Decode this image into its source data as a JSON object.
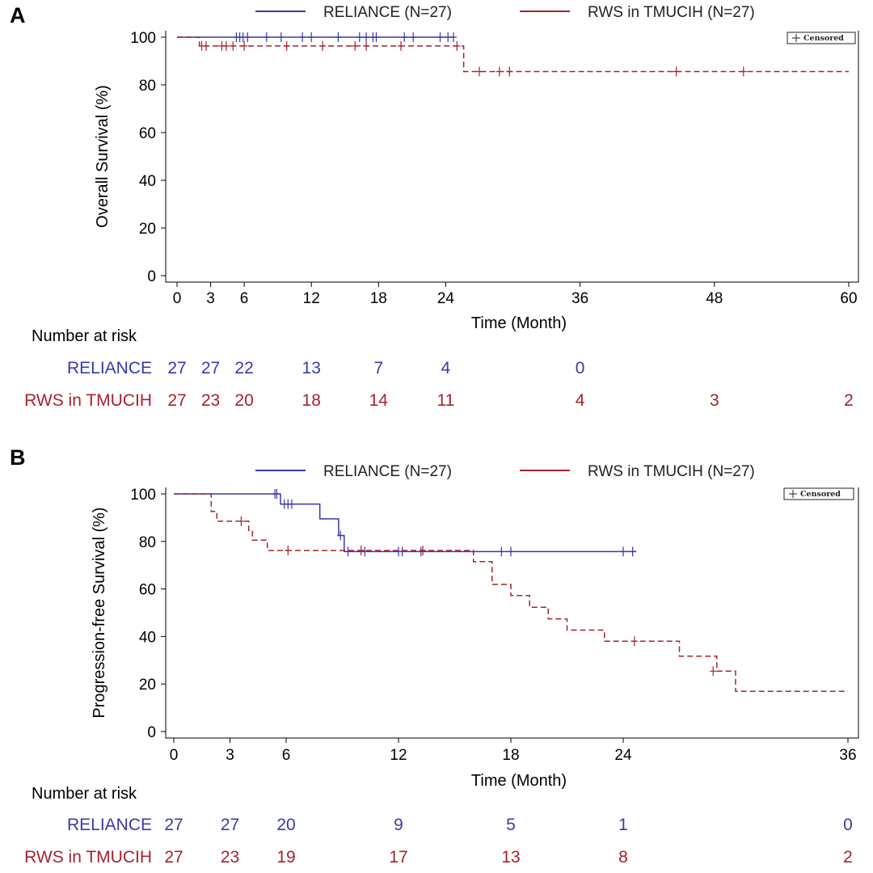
{
  "colors": {
    "reliance": "#3a3aa8",
    "rws": "#a8222c",
    "axis": "#000000"
  },
  "chart_data": [
    {
      "panel_label": "A",
      "type": "line",
      "subtype": "kaplan-meier",
      "ylabel": "Overall Survival (%)",
      "xlabel": "Time (Month)",
      "xlim": [
        0,
        60
      ],
      "ylim": [
        0,
        100
      ],
      "xticks": [
        0,
        3,
        6,
        12,
        18,
        24,
        36,
        48,
        60
      ],
      "xtick_labels": [
        "0",
        "3",
        "6",
        "12",
        "18",
        "24",
        "36",
        "48",
        "60"
      ],
      "yticks": [
        0,
        20,
        40,
        60,
        80,
        100
      ],
      "ytick_labels": [
        "0",
        "20",
        "40",
        "60",
        "80",
        "100"
      ],
      "censored_legend": "Censored",
      "series": [
        {
          "key": "reliance",
          "name": "RELIANCE (N=27)",
          "style": "solid",
          "steps": [
            [
              0,
              100
            ],
            [
              24.7,
              100
            ]
          ],
          "censored": [
            [
              5.3,
              100
            ],
            [
              5.6,
              100
            ],
            [
              5.9,
              100
            ],
            [
              6.3,
              100
            ],
            [
              8,
              100
            ],
            [
              9.3,
              100
            ],
            [
              11.2,
              100
            ],
            [
              12,
              100
            ],
            [
              14.4,
              100
            ],
            [
              16.3,
              100
            ],
            [
              16.9,
              100
            ],
            [
              17.5,
              100
            ],
            [
              17.8,
              100
            ],
            [
              20.3,
              100
            ],
            [
              21.1,
              100
            ],
            [
              23.5,
              100
            ],
            [
              24.2,
              100
            ],
            [
              24.7,
              100
            ]
          ]
        },
        {
          "key": "rws",
          "name": "RWS in TMUCIH (N=27)",
          "style": "dashed",
          "steps": [
            [
              0,
              100
            ],
            [
              2,
              100
            ],
            [
              2,
              96.3
            ],
            [
              25.6,
              96.3
            ],
            [
              25.6,
              85.6
            ],
            [
              60,
              85.6
            ]
          ],
          "censored": [
            [
              2.2,
              96.3
            ],
            [
              2.6,
              96.3
            ],
            [
              4,
              96.3
            ],
            [
              4.4,
              96.3
            ],
            [
              5,
              96.3
            ],
            [
              6,
              96.3
            ],
            [
              9.8,
              96.3
            ],
            [
              13,
              96.3
            ],
            [
              15.9,
              96.3
            ],
            [
              16.9,
              96.3
            ],
            [
              20,
              96.3
            ],
            [
              25,
              96.3
            ],
            [
              27,
              85.6
            ],
            [
              28.8,
              85.6
            ],
            [
              29.7,
              85.6
            ],
            [
              44.6,
              85.6
            ],
            [
              50.6,
              85.6
            ]
          ]
        }
      ],
      "risk_table": {
        "title": "Number at risk",
        "times": [
          0,
          3,
          6,
          12,
          18,
          24,
          36,
          48,
          60
        ],
        "rows": [
          {
            "key": "reliance",
            "label": "RELIANCE",
            "counts": [
              "27",
              "27",
              "22",
              "13",
              "7",
              "4",
              "0"
            ]
          },
          {
            "key": "rws",
            "label": "RWS in TMUCIH",
            "counts": [
              "27",
              "23",
              "20",
              "18",
              "14",
              "11",
              "4",
              "3",
              "2"
            ]
          }
        ]
      }
    },
    {
      "panel_label": "B",
      "type": "line",
      "subtype": "kaplan-meier",
      "ylabel": "Progression-free Survival (%)",
      "xlabel": "Time (Month)",
      "xlim": [
        0,
        36
      ],
      "ylim": [
        0,
        100
      ],
      "xticks": [
        0,
        3,
        6,
        12,
        18,
        24,
        36
      ],
      "xtick_labels": [
        "0",
        "3",
        "6",
        "12",
        "18",
        "24",
        "36"
      ],
      "yticks": [
        0,
        20,
        40,
        60,
        80,
        100
      ],
      "ytick_labels": [
        "0",
        "20",
        "40",
        "60",
        "80",
        "100"
      ],
      "censored_legend": "Censored",
      "series": [
        {
          "key": "reliance",
          "name": "RELIANCE (N=27)",
          "style": "solid",
          "steps": [
            [
              0,
              100
            ],
            [
              5.7,
              100
            ],
            [
              5.7,
              95.7
            ],
            [
              7.8,
              95.7
            ],
            [
              7.8,
              89.5
            ],
            [
              8.8,
              89.5
            ],
            [
              8.8,
              82.5
            ],
            [
              9.1,
              82.5
            ],
            [
              9.1,
              75.7
            ],
            [
              24.7,
              75.7
            ]
          ],
          "censored": [
            [
              5.4,
              100
            ],
            [
              5.5,
              100
            ],
            [
              5.9,
              95.7
            ],
            [
              6.1,
              95.7
            ],
            [
              6.3,
              95.7
            ],
            [
              8.9,
              82.5
            ],
            [
              9.3,
              75.7
            ],
            [
              10.2,
              75.7
            ],
            [
              12,
              75.7
            ],
            [
              12.2,
              75.7
            ],
            [
              13.2,
              75.7
            ],
            [
              17.5,
              75.7
            ],
            [
              18,
              75.7
            ],
            [
              24,
              75.7
            ],
            [
              24.5,
              75.7
            ]
          ]
        },
        {
          "key": "rws",
          "name": "RWS in TMUCIH",
          "legend_name": "RWS in TMUCIH (N=27)",
          "style": "dashed",
          "steps": [
            [
              0,
              100
            ],
            [
              2,
              100
            ],
            [
              2,
              92.6
            ],
            [
              2.3,
              92.6
            ],
            [
              2.3,
              88.5
            ],
            [
              4,
              88.5
            ],
            [
              4,
              84.6
            ],
            [
              4.2,
              84.6
            ],
            [
              4.2,
              80.5
            ],
            [
              5,
              80.5
            ],
            [
              5,
              76.2
            ],
            [
              16,
              76.2
            ],
            [
              16,
              71.5
            ],
            [
              17,
              71.5
            ],
            [
              17,
              61.9
            ],
            [
              18,
              61.9
            ],
            [
              18,
              57.2
            ],
            [
              19,
              57.2
            ],
            [
              19,
              52.3
            ],
            [
              20,
              52.3
            ],
            [
              20,
              47.4
            ],
            [
              21,
              47.4
            ],
            [
              21,
              42.7
            ],
            [
              23,
              42.7
            ],
            [
              23,
              38
            ],
            [
              27,
              38
            ],
            [
              27,
              31.7
            ],
            [
              29,
              31.7
            ],
            [
              29,
              25.4
            ],
            [
              30,
              25.4
            ],
            [
              30,
              16.9
            ],
            [
              36,
              16.9
            ]
          ],
          "censored": [
            [
              3.6,
              88.5
            ],
            [
              6.1,
              76.2
            ],
            [
              10,
              76.2
            ],
            [
              13.3,
              76.2
            ],
            [
              24.6,
              38
            ],
            [
              28.8,
              25.4
            ]
          ]
        }
      ],
      "risk_table": {
        "title": "Number at risk",
        "times": [
          0,
          3,
          6,
          12,
          18,
          24,
          36
        ],
        "rows": [
          {
            "key": "reliance",
            "label": "RELIANCE",
            "counts": [
              "27",
              "27",
              "20",
              "9",
              "5",
              "1",
              "0"
            ]
          },
          {
            "key": "rws",
            "label": "RWS in TMUCIH",
            "counts": [
              "27",
              "23",
              "19",
              "17",
              "13",
              "8",
              "2"
            ]
          }
        ]
      }
    }
  ]
}
